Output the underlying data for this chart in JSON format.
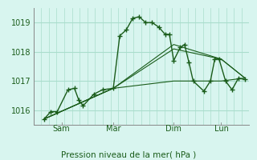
{
  "background_color": "#d8f5ef",
  "grid_color": "#aaddcc",
  "line_color": "#1a5c1a",
  "xlabel": "Pression niveau de la mer( hPa )",
  "ylim": [
    1015.5,
    1019.5
  ],
  "yticks": [
    1016,
    1017,
    1018,
    1019
  ],
  "day_labels": [
    "Sam",
    "Mar",
    "Dim",
    "Lun"
  ],
  "day_positions": [
    0.13,
    0.37,
    0.65,
    0.87
  ],
  "series1": [
    [
      0.05,
      1015.7
    ],
    [
      0.08,
      1015.95
    ],
    [
      0.11,
      1015.95
    ],
    [
      0.16,
      1016.7
    ],
    [
      0.19,
      1016.75
    ],
    [
      0.21,
      1016.35
    ],
    [
      0.23,
      1016.15
    ],
    [
      0.28,
      1016.55
    ],
    [
      0.32,
      1016.7
    ],
    [
      0.37,
      1016.75
    ],
    [
      0.4,
      1018.55
    ],
    [
      0.43,
      1018.75
    ],
    [
      0.46,
      1019.15
    ],
    [
      0.49,
      1019.2
    ],
    [
      0.52,
      1019.0
    ],
    [
      0.55,
      1019.0
    ],
    [
      0.58,
      1018.85
    ],
    [
      0.61,
      1018.6
    ],
    [
      0.63,
      1018.6
    ],
    [
      0.65,
      1017.7
    ],
    [
      0.68,
      1018.15
    ],
    [
      0.7,
      1018.25
    ],
    [
      0.72,
      1017.65
    ],
    [
      0.74,
      1017.0
    ],
    [
      0.79,
      1016.65
    ],
    [
      0.82,
      1017.0
    ],
    [
      0.84,
      1017.75
    ],
    [
      0.86,
      1017.75
    ],
    [
      0.89,
      1017.0
    ],
    [
      0.92,
      1016.7
    ],
    [
      0.95,
      1017.1
    ],
    [
      0.98,
      1017.05
    ]
  ],
  "series2": [
    [
      0.05,
      1015.7
    ],
    [
      0.37,
      1016.75
    ],
    [
      0.65,
      1017.0
    ],
    [
      0.87,
      1017.0
    ],
    [
      0.98,
      1017.1
    ]
  ],
  "series3": [
    [
      0.05,
      1015.7
    ],
    [
      0.37,
      1016.75
    ],
    [
      0.65,
      1018.25
    ],
    [
      0.87,
      1017.75
    ],
    [
      0.98,
      1017.1
    ]
  ],
  "series4": [
    [
      0.05,
      1015.7
    ],
    [
      0.37,
      1016.75
    ],
    [
      0.65,
      1018.1
    ],
    [
      0.87,
      1017.75
    ],
    [
      0.98,
      1017.1
    ]
  ]
}
